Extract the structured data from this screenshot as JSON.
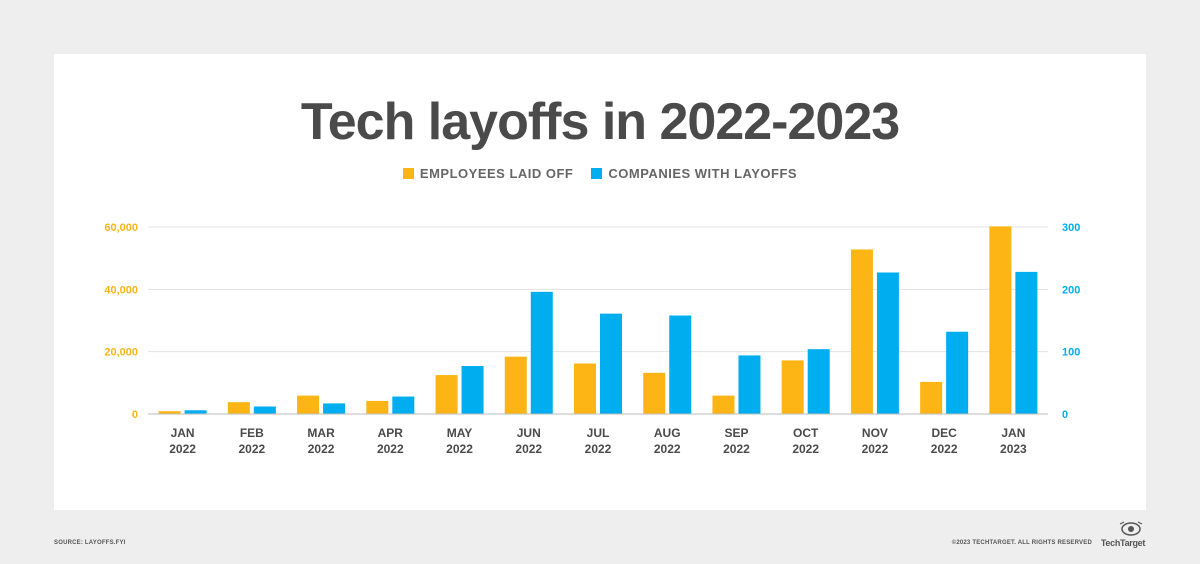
{
  "chart_data": {
    "type": "bar",
    "title": "Tech layoffs in 2022-2023",
    "legend_position": "top-center",
    "grid": true,
    "categories": [
      [
        "JAN",
        "2022"
      ],
      [
        "FEB",
        "2022"
      ],
      [
        "MAR",
        "2022"
      ],
      [
        "APR",
        "2022"
      ],
      [
        "MAY",
        "2022"
      ],
      [
        "JUN",
        "2022"
      ],
      [
        "JUL",
        "2022"
      ],
      [
        "AUG",
        "2022"
      ],
      [
        "SEP",
        "2022"
      ],
      [
        "OCT",
        "2022"
      ],
      [
        "NOV",
        "2022"
      ],
      [
        "DEC",
        "2022"
      ],
      [
        "JAN",
        "2023"
      ]
    ],
    "series": [
      {
        "name": "EMPLOYEES LAID OFF",
        "axis": "left",
        "color": "#FDB515",
        "values": [
          900,
          3800,
          5900,
          4200,
          12500,
          18400,
          16200,
          13200,
          5900,
          17200,
          52800,
          10300,
          60200
        ]
      },
      {
        "name": "COMPANIES WITH LAYOFFS",
        "axis": "right",
        "color": "#00AEEF",
        "values": [
          6,
          12,
          17,
          28,
          77,
          196,
          161,
          158,
          94,
          104,
          227,
          132,
          228
        ]
      }
    ],
    "y_left": {
      "ylim": [
        0,
        60000
      ],
      "ticks": [
        0,
        20000,
        40000,
        60000
      ],
      "tick_labels": [
        "0",
        "20,000",
        "40,000",
        "60,000"
      ],
      "color": "#FDB515"
    },
    "y_right": {
      "ylim": [
        0,
        300
      ],
      "ticks": [
        0,
        100,
        200,
        300
      ],
      "tick_labels": [
        "0",
        "100",
        "200",
        "300"
      ],
      "color": "#00AEEF"
    }
  },
  "footer": {
    "source": "SOURCE: LAYOFFS.FYI",
    "copyright": "©2023 TECHTARGET. ALL RIGHTS RESERVED",
    "brand": "TechTarget"
  }
}
